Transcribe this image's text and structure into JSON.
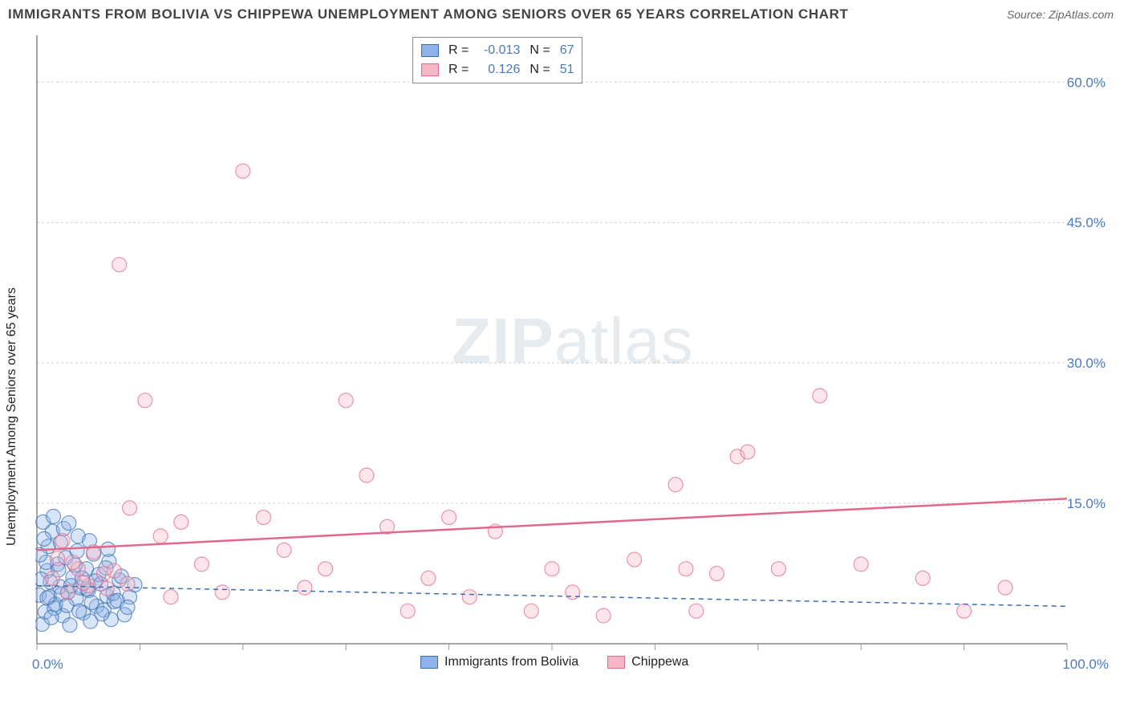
{
  "title": "IMMIGRANTS FROM BOLIVIA VS CHIPPEWA UNEMPLOYMENT AMONG SENIORS OVER 65 YEARS CORRELATION CHART",
  "source": "Source: ZipAtlas.com",
  "watermark_a": "ZIP",
  "watermark_b": "atlas",
  "y_axis_title": "Unemployment Among Seniors over 65 years",
  "chart": {
    "type": "scatter",
    "xlim": [
      0,
      100
    ],
    "ylim": [
      0,
      65
    ],
    "x_tick_positions": [
      0,
      10,
      20,
      30,
      40,
      50,
      60,
      70,
      80,
      90,
      100
    ],
    "x_tick_labels_show": [
      0,
      100
    ],
    "x_labels": {
      "0": "0.0%",
      "100": "100.0%"
    },
    "y_tick_positions": [
      15,
      30,
      45,
      60
    ],
    "y_labels": {
      "15": "15.0%",
      "30": "30.0%",
      "45": "45.0%",
      "60": "60.0%"
    },
    "grid_color": "#d0d0d0",
    "background_color": "#ffffff",
    "axis_label_color": "#4a7abf",
    "axis_label_fontsize": 17,
    "marker_radius": 9,
    "marker_opacity": 0.35,
    "series": [
      {
        "name": "Immigrants from Bolivia",
        "color_fill": "#8fb3e8",
        "color_stroke": "#3b6fb0",
        "points": [
          [
            0.2,
            5.2
          ],
          [
            0.5,
            2.1
          ],
          [
            0.8,
            3.4
          ],
          [
            1.0,
            7.8
          ],
          [
            1.2,
            5.0
          ],
          [
            1.5,
            12.0
          ],
          [
            1.8,
            4.2
          ],
          [
            2.0,
            8.5
          ],
          [
            2.2,
            6.1
          ],
          [
            2.5,
            3.0
          ],
          [
            2.8,
            9.2
          ],
          [
            3.0,
            5.5
          ],
          [
            3.2,
            2.0
          ],
          [
            3.5,
            7.1
          ],
          [
            3.8,
            4.8
          ],
          [
            4.0,
            11.5
          ],
          [
            4.2,
            6.0
          ],
          [
            4.5,
            3.3
          ],
          [
            4.8,
            8.0
          ],
          [
            5.0,
            5.7
          ],
          [
            5.2,
            2.4
          ],
          [
            5.5,
            9.6
          ],
          [
            5.8,
            4.0
          ],
          [
            6.0,
            7.4
          ],
          [
            6.2,
            6.4
          ],
          [
            6.5,
            3.6
          ],
          [
            6.8,
            5.1
          ],
          [
            7.0,
            8.8
          ],
          [
            7.2,
            2.6
          ],
          [
            7.5,
            4.5
          ],
          [
            8.0,
            6.8
          ],
          [
            8.5,
            3.1
          ],
          [
            9.0,
            5.0
          ],
          [
            0.6,
            13.0
          ],
          [
            1.0,
            4.9
          ],
          [
            1.3,
            6.6
          ],
          [
            1.7,
            3.8
          ],
          [
            2.1,
            7.9
          ],
          [
            2.4,
            5.3
          ],
          [
            2.9,
            4.1
          ],
          [
            3.3,
            6.2
          ],
          [
            3.7,
            8.4
          ],
          [
            4.1,
            3.5
          ],
          [
            4.4,
            7.0
          ],
          [
            4.9,
            5.9
          ],
          [
            5.3,
            4.4
          ],
          [
            5.7,
            6.7
          ],
          [
            6.3,
            3.2
          ],
          [
            6.7,
            8.1
          ],
          [
            7.4,
            5.4
          ],
          [
            7.8,
            4.6
          ],
          [
            8.2,
            7.2
          ],
          [
            8.8,
            3.9
          ],
          [
            9.5,
            6.3
          ],
          [
            1.1,
            10.4
          ],
          [
            2.6,
            12.3
          ],
          [
            3.9,
            9.9
          ],
          [
            5.1,
            11.0
          ],
          [
            6.9,
            10.1
          ],
          [
            0.4,
            6.9
          ],
          [
            0.9,
            8.7
          ],
          [
            1.4,
            2.8
          ],
          [
            0.3,
            9.5
          ],
          [
            0.7,
            11.2
          ],
          [
            1.6,
            13.6
          ],
          [
            2.3,
            10.8
          ],
          [
            3.1,
            12.9
          ]
        ],
        "trend": {
          "y_at_x0": 6.2,
          "y_at_x100": 4.0,
          "dash": "6,5",
          "width": 1.5,
          "color": "#3b6fb0"
        },
        "R": "-0.013",
        "N": "67"
      },
      {
        "name": "Chippewa",
        "color_fill": "#f6b6c6",
        "color_stroke": "#e06a8b",
        "points": [
          [
            1.5,
            7.0
          ],
          [
            2.0,
            9.1
          ],
          [
            3.0,
            5.5
          ],
          [
            4.0,
            8.0
          ],
          [
            5.0,
            6.2
          ],
          [
            6.5,
            7.5
          ],
          [
            8.0,
            40.5
          ],
          [
            9.0,
            14.5
          ],
          [
            10.5,
            26.0
          ],
          [
            12.0,
            11.5
          ],
          [
            13.0,
            5.0
          ],
          [
            14.0,
            13.0
          ],
          [
            16.0,
            8.5
          ],
          [
            18.0,
            5.5
          ],
          [
            20.0,
            50.5
          ],
          [
            22.0,
            13.5
          ],
          [
            24.0,
            10.0
          ],
          [
            26.0,
            6.0
          ],
          [
            28.0,
            8.0
          ],
          [
            30.0,
            26.0
          ],
          [
            32.0,
            18.0
          ],
          [
            34.0,
            12.5
          ],
          [
            36.0,
            3.5
          ],
          [
            38.0,
            7.0
          ],
          [
            40.0,
            13.5
          ],
          [
            42.0,
            5.0
          ],
          [
            44.5,
            12.0
          ],
          [
            48.0,
            3.5
          ],
          [
            50.0,
            8.0
          ],
          [
            52.0,
            5.5
          ],
          [
            55.0,
            3.0
          ],
          [
            58.0,
            9.0
          ],
          [
            62.0,
            17.0
          ],
          [
            63.0,
            8.0
          ],
          [
            64.0,
            3.5
          ],
          [
            66.0,
            7.5
          ],
          [
            68.0,
            20.0
          ],
          [
            69.0,
            20.5
          ],
          [
            72.0,
            8.0
          ],
          [
            76.0,
            26.5
          ],
          [
            80.0,
            8.5
          ],
          [
            86.0,
            7.0
          ],
          [
            90.0,
            3.5
          ],
          [
            94.0,
            6.0
          ],
          [
            2.5,
            11.0
          ],
          [
            3.5,
            8.7
          ],
          [
            4.5,
            6.5
          ],
          [
            5.5,
            9.8
          ],
          [
            6.8,
            5.9
          ],
          [
            7.5,
            7.8
          ],
          [
            8.8,
            6.4
          ]
        ],
        "trend": {
          "y_at_x0": 10.0,
          "y_at_x100": 15.5,
          "dash": null,
          "width": 2.5,
          "color": "#e06a8b"
        },
        "R": "0.126",
        "N": "51"
      }
    ]
  },
  "legend_top": {
    "R_label": "R  =",
    "N_label": "N  =",
    "value_color": "#4a7abf"
  },
  "legend_bottom": {
    "items": [
      "Immigrants from Bolivia",
      "Chippewa"
    ]
  }
}
